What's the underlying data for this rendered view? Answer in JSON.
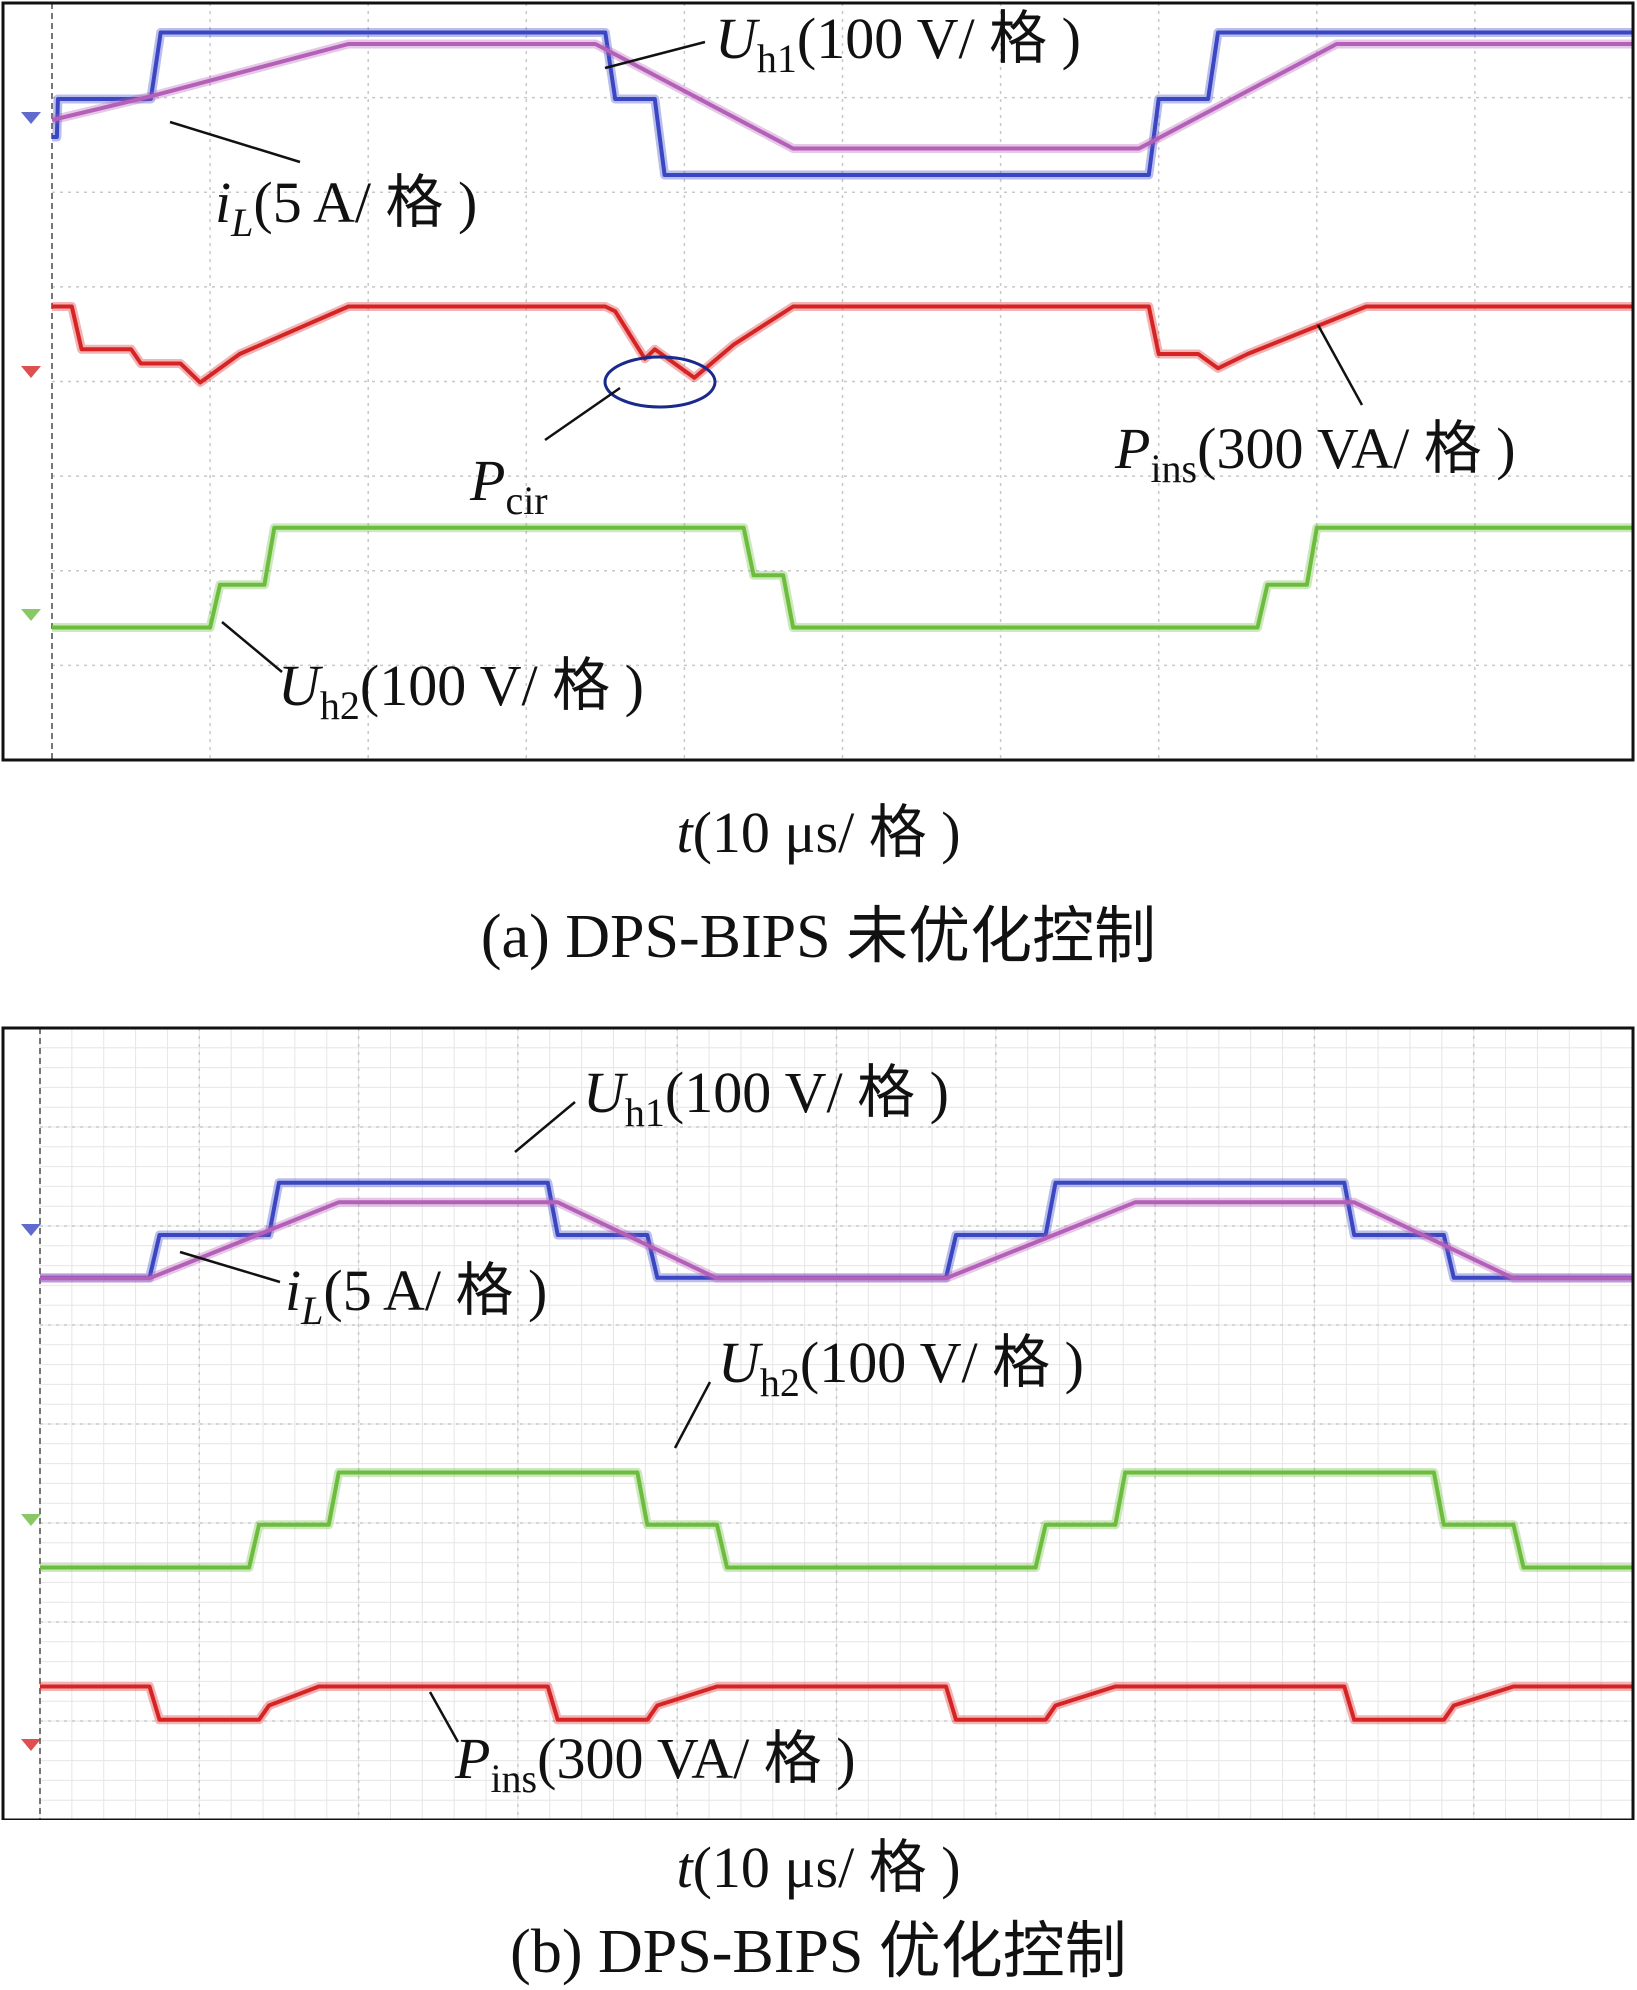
{
  "chart_data": [
    {
      "type": "line",
      "panel": "a",
      "caption": "(a) DPS-BIPS 未优化控制",
      "x_axis": {
        "var": "t",
        "unit": "(10 μs/ 格 )",
        "divisions": 10
      },
      "y_divisions": 8,
      "labels": [
        {
          "main": "U",
          "sub": "h1",
          "unit": "(100 V/ 格 )"
        },
        {
          "main": "i",
          "sub": "L",
          "unit": "(5 A/ 格 )"
        },
        {
          "main": "P",
          "sub": "ins",
          "unit": "(300 VA/ 格 )"
        },
        {
          "main": "P",
          "sub": "cir",
          "unit": ""
        },
        {
          "main": "U",
          "sub": "h2",
          "unit": "(100 V/ 格 )"
        }
      ],
      "series": [
        {
          "color": "#3a46c2",
          "x": [
            0,
            0.05,
            0.06,
            0.55,
            1.0,
            1.1,
            1.8,
            2.0,
            5.6,
            5.7,
            6.1,
            6.2,
            11.1,
            11.2,
            11.7,
            11.8,
            16.0
          ],
          "y": [
            -0.2,
            -0.2,
            0.2,
            0.2,
            0.2,
            0.9,
            0.9,
            0.9,
            0.9,
            0.2,
            0.2,
            -0.6,
            -0.6,
            0.2,
            0.2,
            0.9,
            0.9
          ]
        },
        {
          "color": "#b45fb8",
          "x": [
            0,
            1.0,
            3.0,
            5.5,
            7.5,
            11.0,
            13.0,
            16.0
          ],
          "y": [
            0.0,
            0.25,
            0.8,
            0.8,
            -0.3,
            -0.3,
            0.8,
            0.8
          ]
        },
        {
          "color": "#d62424",
          "x": [
            0,
            0.2,
            0.3,
            0.8,
            0.9,
            1.3,
            1.5,
            1.9,
            3.0,
            5.6,
            5.7,
            6.0,
            6.1,
            6.5,
            6.9,
            7.5,
            11.1,
            11.2,
            11.6,
            11.8,
            12.1,
            13.3,
            16.0
          ],
          "y": [
            0.3,
            0.3,
            -0.15,
            -0.15,
            -0.3,
            -0.3,
            -0.5,
            -0.2,
            0.3,
            0.3,
            0.25,
            -0.25,
            -0.15,
            -0.45,
            -0.1,
            0.3,
            0.3,
            -0.2,
            -0.2,
            -0.35,
            -0.2,
            0.3,
            0.3
          ]
        },
        {
          "color": "#6cbc3e",
          "x": [
            0,
            1.6,
            1.7,
            2.15,
            2.25,
            7.0,
            7.1,
            7.4,
            7.5,
            12.2,
            12.3,
            12.7,
            12.8,
            16.0
          ],
          "y": [
            -0.5,
            -0.5,
            -0.05,
            -0.05,
            0.55,
            0.55,
            0.05,
            0.05,
            -0.5,
            -0.5,
            -0.05,
            -0.05,
            0.55,
            0.55
          ]
        }
      ]
    },
    {
      "type": "line",
      "panel": "b",
      "caption": "(b) DPS-BIPS 优化控制",
      "x_axis": {
        "var": "t",
        "unit": "(10 μs/ 格 )",
        "divisions": 10
      },
      "y_divisions": 8,
      "labels": [
        {
          "main": "U",
          "sub": "h1",
          "unit": "(100 V/ 格 )"
        },
        {
          "main": "i",
          "sub": "L",
          "unit": "(5 A/ 格 )"
        },
        {
          "main": "U",
          "sub": "h2",
          "unit": "(100 V/ 格 )"
        },
        {
          "main": "P",
          "sub": "ins",
          "unit": "(300 VA/ 格 )"
        }
      ],
      "series": [
        {
          "color": "#3a46c2",
          "x": [
            0,
            1.1,
            1.2,
            2.3,
            2.4,
            5.1,
            5.2,
            6.1,
            6.2,
            9.1,
            9.2,
            10.1,
            10.2,
            13.1,
            13.2,
            14.1,
            14.2,
            16.0
          ],
          "y": [
            -0.45,
            -0.45,
            0.0,
            0.0,
            0.55,
            0.55,
            0.0,
            0.0,
            -0.45,
            -0.45,
            0.0,
            0.0,
            0.55,
            0.55,
            0.0,
            0.0,
            -0.45,
            -0.45
          ]
        },
        {
          "color": "#b45fb8",
          "x": [
            0,
            1.1,
            3.0,
            5.2,
            6.8,
            9.1,
            11.0,
            13.2,
            14.8,
            16.0
          ],
          "y": [
            -0.35,
            -0.35,
            0.45,
            0.45,
            -0.35,
            -0.35,
            0.45,
            0.45,
            -0.35,
            -0.35
          ]
        },
        {
          "color": "#6cbc3e",
          "x": [
            0,
            2.1,
            2.2,
            2.9,
            3.0,
            6.0,
            6.1,
            6.8,
            6.9,
            10.0,
            10.1,
            10.8,
            10.9,
            14.0,
            14.1,
            14.8,
            14.9,
            16.0
          ],
          "y": [
            -0.5,
            -0.5,
            -0.05,
            -0.05,
            0.5,
            0.5,
            -0.05,
            -0.05,
            -0.5,
            -0.5,
            -0.05,
            -0.05,
            0.5,
            0.5,
            -0.05,
            -0.05,
            -0.5,
            -0.5
          ]
        },
        {
          "color": "#d62424",
          "x": [
            0,
            1.1,
            1.2,
            2.2,
            2.3,
            2.8,
            5.1,
            5.2,
            6.1,
            6.2,
            6.8,
            9.1,
            9.2,
            10.1,
            10.2,
            10.8,
            13.1,
            13.2,
            14.1,
            14.2,
            14.8,
            16.0
          ],
          "y": [
            0.3,
            0.3,
            -0.05,
            -0.05,
            0.1,
            0.3,
            0.3,
            -0.05,
            -0.05,
            0.1,
            0.3,
            0.3,
            -0.05,
            -0.05,
            0.1,
            0.3,
            0.3,
            -0.05,
            -0.05,
            0.1,
            0.3,
            0.3
          ]
        }
      ]
    }
  ]
}
